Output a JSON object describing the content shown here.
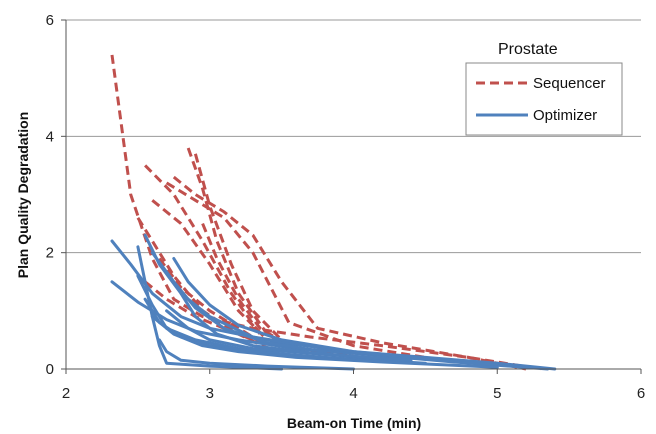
{
  "chart_data": {
    "type": "line",
    "xlabel": "Beam-on Time  (min)",
    "ylabel": "Plan Quality Degradation",
    "xlim": [
      2,
      6
    ],
    "ylim": [
      0,
      6
    ],
    "xticks": [
      2,
      3,
      4,
      5,
      6
    ],
    "yticks": [
      0,
      2,
      4,
      6
    ],
    "grid": "horizontal",
    "legend": {
      "title": "Prostate",
      "placement": "top-right",
      "entries": [
        {
          "label": "Sequencer",
          "color": "#c0504d",
          "style": "dashed"
        },
        {
          "label": "Optimizer",
          "color": "#4f81bd",
          "style": "solid"
        }
      ]
    },
    "series": [
      {
        "group": "Sequencer",
        "x": [
          2.32,
          2.45,
          2.6,
          2.75,
          2.95,
          3.3,
          3.7,
          4.2,
          4.8,
          5.3
        ],
        "y": [
          5.4,
          3.0,
          1.9,
          1.2,
          0.9,
          0.7,
          0.55,
          0.4,
          0.2,
          0.0
        ]
      },
      {
        "group": "Sequencer",
        "x": [
          2.85,
          2.95,
          3.05,
          3.2,
          3.4,
          3.6
        ],
        "y": [
          3.8,
          3.1,
          2.2,
          1.3,
          0.6,
          0.3
        ]
      },
      {
        "group": "Sequencer",
        "x": [
          2.9,
          3.0,
          3.15,
          3.3,
          3.5
        ],
        "y": [
          3.7,
          2.8,
          1.8,
          1.0,
          0.5
        ]
      },
      {
        "group": "Sequencer",
        "x": [
          2.75,
          2.9,
          3.1,
          3.3,
          3.5,
          3.75,
          4.2,
          4.8,
          5.2
        ],
        "y": [
          3.3,
          3.0,
          2.7,
          2.3,
          1.5,
          0.7,
          0.45,
          0.2,
          0.0
        ]
      },
      {
        "group": "Sequencer",
        "x": [
          2.55,
          2.75,
          2.95,
          3.15,
          3.35
        ],
        "y": [
          3.5,
          3.0,
          2.2,
          1.3,
          0.6
        ]
      },
      {
        "group": "Sequencer",
        "x": [
          2.6,
          2.8,
          3.0,
          3.2,
          3.4
        ],
        "y": [
          2.9,
          2.5,
          1.8,
          1.0,
          0.5
        ]
      },
      {
        "group": "Sequencer",
        "x": [
          2.7,
          2.9,
          3.1,
          3.3,
          3.55,
          4.0,
          4.5
        ],
        "y": [
          3.2,
          2.9,
          2.6,
          2.0,
          0.8,
          0.4,
          0.2
        ]
      },
      {
        "group": "Sequencer",
        "x": [
          2.5,
          2.6,
          2.75,
          2.95,
          3.2,
          3.45
        ],
        "y": [
          2.6,
          2.2,
          1.6,
          1.0,
          0.6,
          0.3
        ]
      },
      {
        "group": "Sequencer",
        "x": [
          2.65,
          2.8,
          3.0,
          3.2,
          3.4
        ],
        "y": [
          1.9,
          1.4,
          1.0,
          0.7,
          0.4
        ]
      },
      {
        "group": "Sequencer",
        "x": [
          2.95,
          3.05,
          3.2,
          3.35,
          3.55
        ],
        "y": [
          2.5,
          1.9,
          1.2,
          0.7,
          0.4
        ]
      },
      {
        "group": "Sequencer",
        "x": [
          2.55,
          2.7,
          2.9,
          3.1,
          3.3,
          3.6,
          4.0
        ],
        "y": [
          1.5,
          1.2,
          0.9,
          0.7,
          0.5,
          0.35,
          0.25
        ]
      },
      {
        "group": "Optimizer",
        "x": [
          2.32,
          2.45,
          2.6,
          2.8,
          3.0,
          3.5,
          4.0,
          4.5,
          5.0,
          5.4
        ],
        "y": [
          2.2,
          1.8,
          1.3,
          0.9,
          0.7,
          0.45,
          0.3,
          0.2,
          0.1,
          0.0
        ]
      },
      {
        "group": "Optimizer",
        "x": [
          2.32,
          2.5,
          2.7,
          2.9,
          3.2,
          3.6,
          4.1,
          4.7,
          5.35
        ],
        "y": [
          1.5,
          1.15,
          0.85,
          0.65,
          0.5,
          0.35,
          0.25,
          0.12,
          0.0
        ]
      },
      {
        "group": "Optimizer",
        "x": [
          2.55,
          2.65,
          2.8,
          3.0,
          3.3,
          3.8,
          4.3
        ],
        "y": [
          2.3,
          1.8,
          1.3,
          0.9,
          0.55,
          0.35,
          0.2
        ]
      },
      {
        "group": "Optimizer",
        "x": [
          2.6,
          2.75,
          2.9,
          3.1,
          3.4,
          3.8
        ],
        "y": [
          2.0,
          1.5,
          1.05,
          0.7,
          0.45,
          0.3
        ]
      },
      {
        "group": "Optimizer",
        "x": [
          2.75,
          2.85,
          3.0,
          3.2,
          3.5,
          4.0,
          4.6
        ],
        "y": [
          1.9,
          1.5,
          1.1,
          0.75,
          0.5,
          0.3,
          0.15
        ]
      },
      {
        "group": "Optimizer",
        "x": [
          2.5,
          2.6,
          2.7,
          2.9,
          3.2,
          3.7
        ],
        "y": [
          1.6,
          1.1,
          0.7,
          0.5,
          0.35,
          0.2
        ]
      },
      {
        "group": "Optimizer",
        "x": [
          2.5,
          2.55,
          2.6,
          2.65,
          2.7,
          3.0,
          3.5
        ],
        "y": [
          2.1,
          1.5,
          0.9,
          0.4,
          0.1,
          0.05,
          0.0
        ]
      },
      {
        "group": "Optimizer",
        "x": [
          2.55,
          2.65,
          2.8,
          3.0,
          3.3,
          3.8,
          4.5
        ],
        "y": [
          1.2,
          0.8,
          0.55,
          0.4,
          0.3,
          0.2,
          0.1
        ]
      },
      {
        "group": "Optimizer",
        "x": [
          2.6,
          2.75,
          2.95,
          3.2,
          3.6,
          4.2,
          5.0
        ],
        "y": [
          0.9,
          0.6,
          0.4,
          0.3,
          0.2,
          0.12,
          0.03
        ]
      },
      {
        "group": "Optimizer",
        "x": [
          2.7,
          2.85,
          3.0,
          3.3,
          3.8,
          4.4
        ],
        "y": [
          1.0,
          0.7,
          0.5,
          0.35,
          0.25,
          0.15
        ]
      },
      {
        "group": "Optimizer",
        "x": [
          2.65,
          2.7,
          2.8,
          3.0,
          3.4,
          4.0
        ],
        "y": [
          0.5,
          0.3,
          0.15,
          0.1,
          0.05,
          0.0
        ]
      },
      {
        "group": "Optimizer",
        "x": [
          2.8,
          2.9,
          3.05,
          3.3,
          3.7,
          4.2
        ],
        "y": [
          1.3,
          0.9,
          0.6,
          0.4,
          0.28,
          0.18
        ]
      }
    ]
  }
}
